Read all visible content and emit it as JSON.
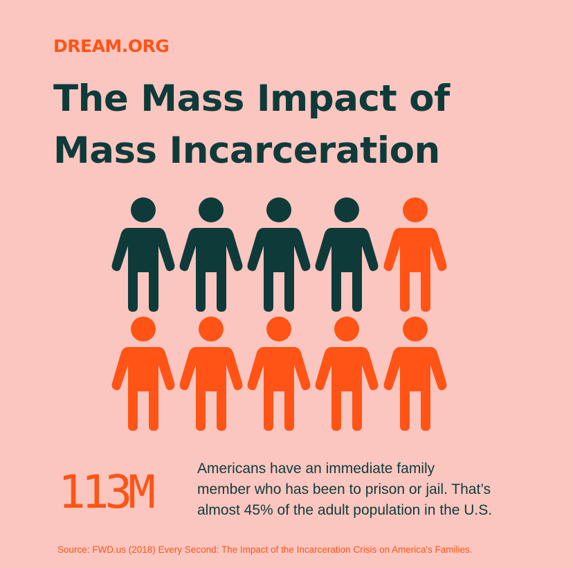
{
  "brand": "DREAM.ORG",
  "title": [
    "The Mass Impact of",
    "Mass Incarceration"
  ],
  "stat": "113M",
  "description": [
    "Americans have an immediate family",
    "member who has been to prison or jail. That’s",
    "almost 45% of the adult population in the U.S."
  ],
  "source": "Source: FWD.us (2018) Every Second: The Impact of the Incarceration Crisis on America's Families."
}
